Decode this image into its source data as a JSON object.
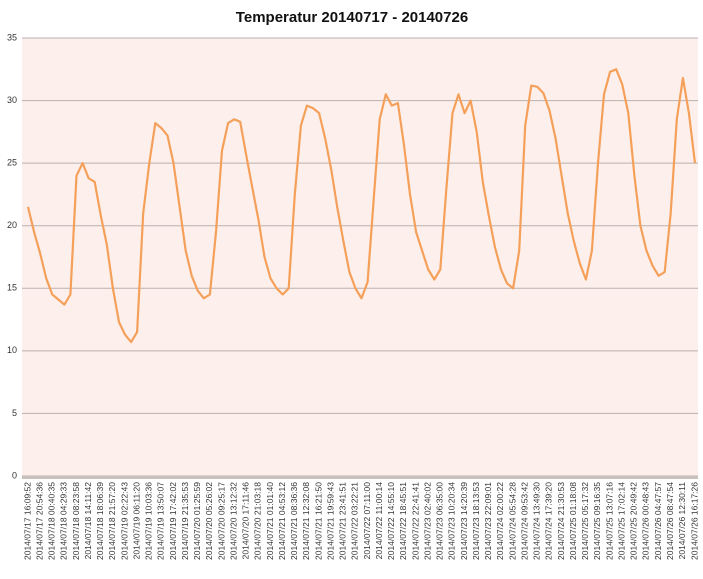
{
  "chart_data": {
    "type": "line",
    "title": "Temperatur 20140717 - 20140726",
    "categories": [
      "2014/07/17 16:09:52",
      null,
      "2014/07/17 20:54:36",
      null,
      "2014/07/18 00:40:35",
      null,
      "2014/07/18 04:29:33",
      null,
      "2014/07/18 08:23:58",
      null,
      "2014/07/18 14:11:42",
      null,
      "2014/07/18 18:06:39",
      null,
      "2014/07/18 21:57:20",
      null,
      "2014/07/19 02:22:43",
      null,
      "2014/07/19 06:11:20",
      null,
      "2014/07/19 10:03:36",
      null,
      "2014/07/19 13:50:07",
      null,
      "2014/07/19 17:42:02",
      null,
      "2014/07/19 21:35:53",
      null,
      "2014/07/20 01:25:59",
      null,
      "2014/07/20 05:26:02",
      null,
      "2014/07/20 09:25:17",
      null,
      "2014/07/20 13:12:32",
      null,
      "2014/07/20 17:11:46",
      null,
      "2014/07/20 21:03:18",
      null,
      "2014/07/21 01:01:40",
      null,
      "2014/07/21 04:53:12",
      null,
      "2014/07/21 08:36:36",
      null,
      "2014/07/21 12:32:08",
      null,
      "2014/07/21 16:21:50",
      null,
      "2014/07/21 19:59:43",
      null,
      "2014/07/21 23:41:51",
      null,
      "2014/07/22 03:22:21",
      null,
      "2014/07/22 07:11:00",
      null,
      "2014/07/22 11:00:14",
      null,
      "2014/07/22 14:55:10",
      null,
      "2014/07/22 18:45:51",
      null,
      "2014/07/22 22:41:41",
      null,
      "2014/07/23 02:40:02",
      null,
      "2014/07/23 06:35:00",
      null,
      "2014/07/23 10:20:34",
      null,
      "2014/07/23 14:20:39",
      null,
      "2014/07/23 18:13:53",
      null,
      "2014/07/23 22:09:01",
      null,
      "2014/07/24 02:00:22",
      null,
      "2014/07/24 05:54:28",
      null,
      "2014/07/24 09:53:42",
      null,
      "2014/07/24 13:49:30",
      null,
      "2014/07/24 17:39:20",
      null,
      "2014/07/24 21:30:53",
      null,
      "2014/07/25 01:18:08",
      null,
      "2014/07/25 05:17:32",
      null,
      "2014/07/25 09:16:35",
      null,
      "2014/07/25 13:07:16",
      null,
      "2014/07/25 17:02:14",
      null,
      "2014/07/25 20:49:42",
      null,
      "2014/07/26 00:48:43",
      null,
      "2014/07/26 04:47:57",
      null,
      "2014/07/26 08:47:54",
      null,
      "2014/07/26 12:30:11",
      null,
      "2014/07/26 16:17:26"
    ],
    "series": [
      {
        "color": "#f5a05a",
        "values": [
          21.5,
          19.5,
          17.8,
          15.8,
          14.5,
          14.1,
          13.7,
          14.5,
          24,
          25,
          23.8,
          23.5,
          20.8,
          18.5,
          15,
          12.3,
          11.3,
          10.7,
          11.5,
          21,
          25,
          28.2,
          27.8,
          27.2,
          25,
          21.5,
          18,
          16,
          14.8,
          14.2,
          14.5,
          19.5,
          26,
          28.2,
          28.5,
          28.3,
          25.6,
          23,
          20.5,
          17.5,
          15.8,
          15,
          14.5,
          15,
          22.5,
          28,
          29.6,
          29.4,
          29,
          27,
          24.5,
          21.5,
          18.8,
          16.3,
          15,
          14.2,
          15.5,
          22,
          28.5,
          30.5,
          29.6,
          29.8,
          26.5,
          22.5,
          19.5,
          18,
          16.5,
          15.7,
          16.5,
          23,
          29,
          30.5,
          29,
          30,
          27.5,
          23.5,
          20.8,
          18.3,
          16.5,
          15.4,
          15,
          18,
          28,
          31.2,
          31.1,
          30.6,
          29.2,
          27,
          24,
          21,
          18.8,
          17,
          15.7,
          18,
          25,
          30.5,
          32.3,
          32.5,
          31.3,
          29,
          24,
          20,
          18,
          16.8,
          16,
          16.3,
          21,
          28.5,
          31.8,
          29,
          25
        ]
      }
    ],
    "ylim": [
      0,
      35
    ],
    "yticks": [
      0,
      5,
      10,
      15,
      20,
      25,
      30,
      35
    ],
    "grid": true
  }
}
